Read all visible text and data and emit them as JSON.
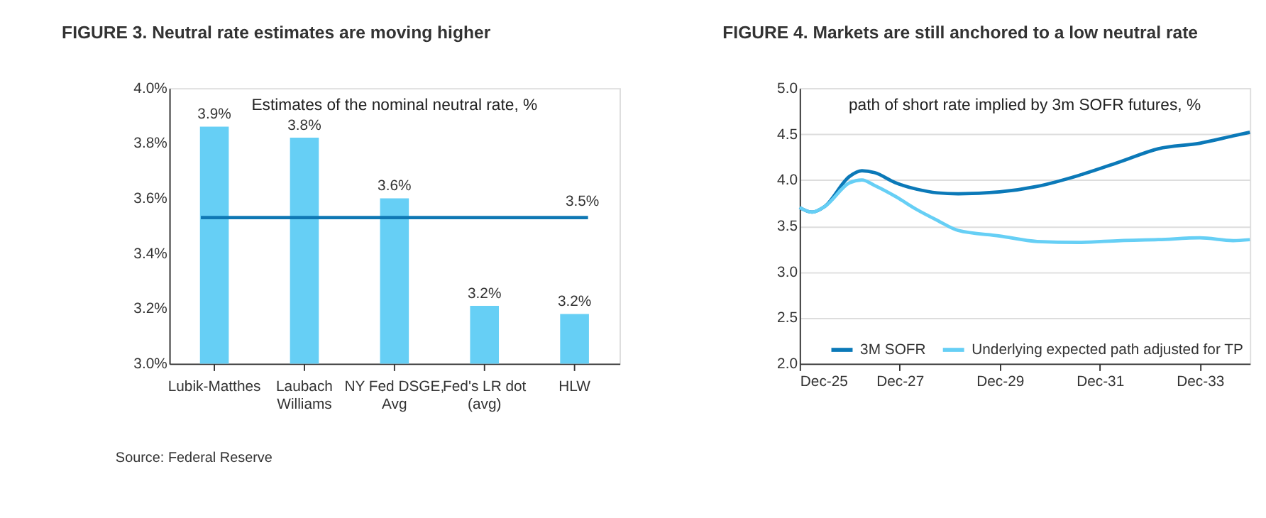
{
  "chart_data": [
    {
      "type": "bar",
      "title": "FIGURE 3. Neutral rate estimates are moving higher",
      "annotations": [
        "Estimates of the nominal neutral rate, %",
        "Source: Federal Reserve"
      ],
      "categories": [
        "Lubik-Matthes",
        "Laubach Williams",
        "NY Fed DSGE, Avg",
        "Fed's LR dot (avg)",
        "HLW"
      ],
      "values": [
        3.86,
        3.82,
        3.6,
        3.21,
        3.18
      ],
      "value_labels": [
        "3.9%",
        "3.8%",
        "3.6%",
        "3.2%",
        "3.2%"
      ],
      "color": "#66cff5",
      "ylim": [
        3.0,
        4.0
      ],
      "yticks": [
        {
          "value": 3.0,
          "label": "3.0%"
        },
        {
          "value": 3.2,
          "label": "3.2%"
        },
        {
          "value": 3.4,
          "label": "3.4%"
        },
        {
          "value": 3.6,
          "label": "3.6%"
        },
        {
          "value": 3.8,
          "label": "3.8%"
        },
        {
          "value": 4.0,
          "label": "4.0%"
        }
      ],
      "ref_lines": [
        {
          "axis": "y",
          "value": 3.53,
          "label": "3.5%",
          "color": "#0f78b4"
        }
      ],
      "grid": false
    },
    {
      "type": "line",
      "title": "FIGURE 4. Markets are still anchored to a low neutral rate",
      "annotations": [
        "path of short rate implied by 3m SOFR futures, %"
      ],
      "xlim": [
        "2025-12",
        "2034-12"
      ],
      "xticks": [
        {
          "value": "2025-12",
          "label": "Dec-25"
        },
        {
          "value": "2027-12",
          "label": "Dec-27"
        },
        {
          "value": "2029-12",
          "label": "Dec-29"
        },
        {
          "value": "2031-12",
          "label": "Dec-31"
        },
        {
          "value": "2033-12",
          "label": "Dec-33"
        }
      ],
      "ylim": [
        2.0,
        5.0
      ],
      "yticks": [
        {
          "value": 2.0,
          "label": "2.0"
        },
        {
          "value": 2.5,
          "label": "2.5"
        },
        {
          "value": 3.0,
          "label": "3.0"
        },
        {
          "value": 3.5,
          "label": "3.5"
        },
        {
          "value": 4.0,
          "label": "4.0"
        },
        {
          "value": 4.5,
          "label": "4.5"
        },
        {
          "value": 5.0,
          "label": "5.0"
        }
      ],
      "x": [
        "2025-12",
        "2026-03",
        "2026-06",
        "2026-12",
        "2027-03",
        "2027-06",
        "2027-11",
        "2028-04",
        "2028-09",
        "2029-02",
        "2029-12",
        "2030-09",
        "2031-07",
        "2032-05",
        "2033-02",
        "2033-12",
        "2034-08",
        "2034-12"
      ],
      "series": [
        {
          "name": "3M SOFR",
          "color": "#0b79b8",
          "values": [
            3.7,
            3.65,
            3.71,
            4.04,
            4.1,
            4.08,
            3.97,
            3.9,
            3.86,
            3.85,
            3.87,
            3.93,
            4.05,
            4.2,
            4.34,
            4.4,
            4.48,
            4.52
          ]
        },
        {
          "name": "Underlying expected path adjusted for TP",
          "color": "#66cff5",
          "values": [
            3.7,
            3.65,
            3.71,
            3.97,
            4.0,
            3.94,
            3.82,
            3.68,
            3.56,
            3.45,
            3.39,
            3.33,
            3.32,
            3.34,
            3.35,
            3.37,
            3.34,
            3.35
          ]
        }
      ],
      "grid": "y",
      "legend": "bottom"
    }
  ]
}
